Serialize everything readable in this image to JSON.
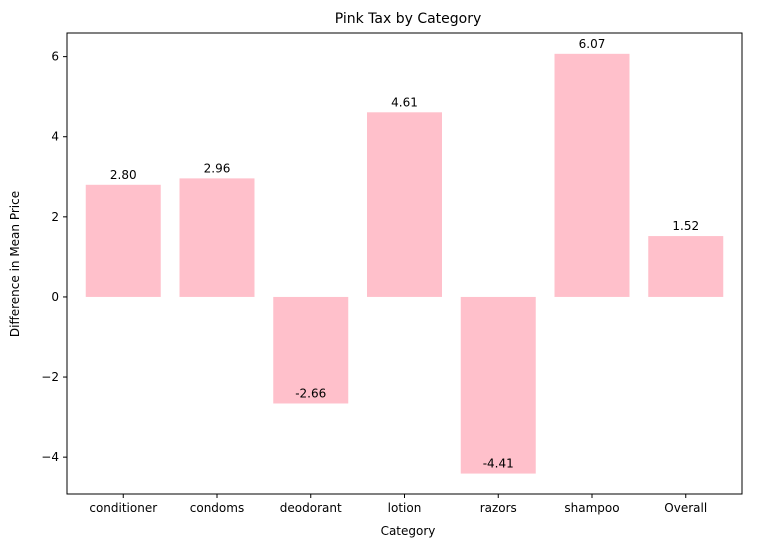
{
  "chart_data": {
    "type": "bar",
    "title": "Pink Tax by Category",
    "xlabel": "Category",
    "ylabel": "Difference in Mean Price",
    "categories": [
      "conditioner",
      "condoms",
      "deodorant",
      "lotion",
      "razors",
      "shampoo",
      "Overall"
    ],
    "values": [
      2.8,
      2.96,
      -2.66,
      4.61,
      -4.41,
      6.07,
      1.52
    ],
    "value_labels": [
      "2.80",
      "2.96",
      "-2.66",
      "4.61",
      "-4.41",
      "6.07",
      "1.52"
    ],
    "ylim": [
      -4.92,
      6.59
    ],
    "yticks": [
      -4,
      -2,
      0,
      2,
      4,
      6
    ],
    "ytick_labels": [
      "−4",
      "−2",
      "0",
      "2",
      "4",
      "6"
    ],
    "bar_color": "#ffc0cb",
    "grid": false,
    "legend": "none"
  }
}
